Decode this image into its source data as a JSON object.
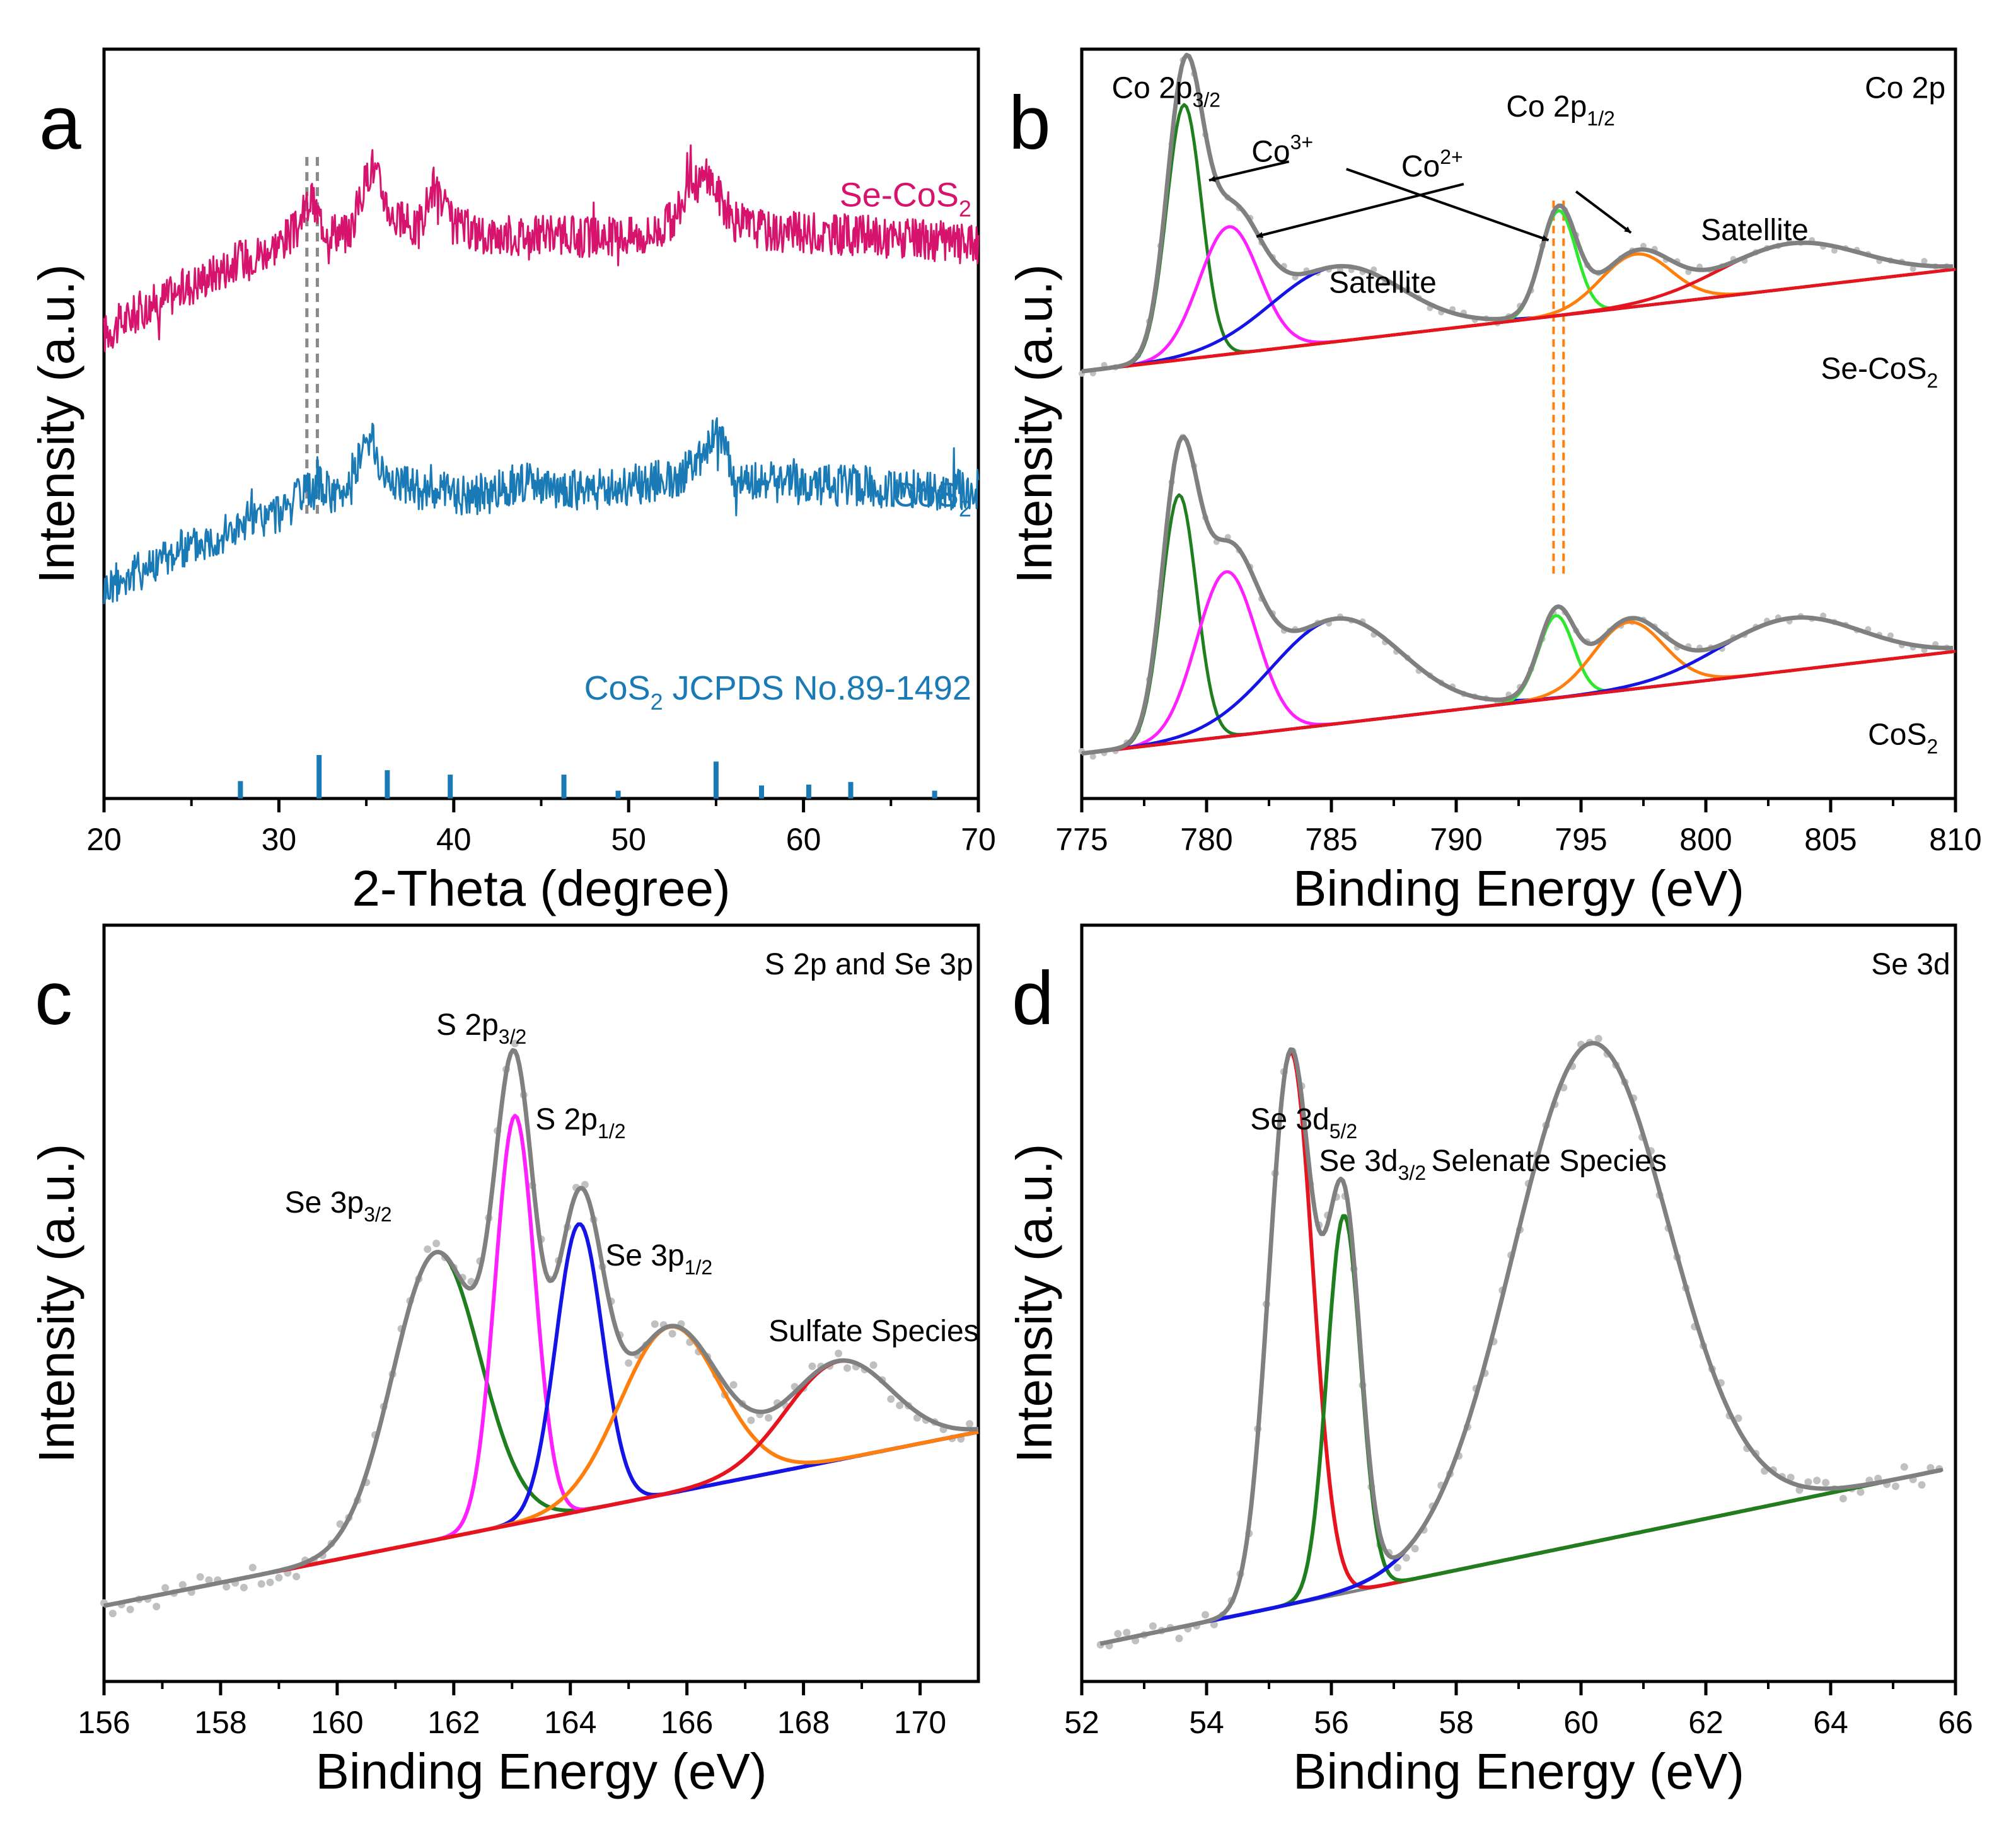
{
  "chart_data": [
    {
      "panel": "a",
      "type": "line",
      "xlabel": "2-Theta (degree)",
      "ylabel": "Intensity (a.u.)",
      "xlim": [
        20,
        70
      ],
      "xticks": [
        20,
        30,
        40,
        50,
        60,
        70
      ],
      "colors": {
        "se_cos2": "#d6136d",
        "cos2": "#1a7ab5",
        "ref": "#1a7ab5",
        "guide": "#8a8a8a"
      },
      "series": [
        {
          "name": "Se-CoS2",
          "label": "Se-CoS",
          "sub": "2",
          "offset": 0.92,
          "amp": 0.3,
          "points": [
            [
              20,
              0.0
            ],
            [
              22,
              0.1
            ],
            [
              24,
              0.18
            ],
            [
              26,
              0.26
            ],
            [
              28,
              0.34
            ],
            [
              29.5,
              0.38
            ],
            [
              31,
              0.46
            ],
            [
              31.8,
              0.6
            ],
            [
              32.6,
              0.48
            ],
            [
              34,
              0.44
            ],
            [
              35.3,
              0.76
            ],
            [
              36.5,
              0.52
            ],
            [
              38,
              0.46
            ],
            [
              38.8,
              0.66
            ],
            [
              40,
              0.48
            ],
            [
              42,
              0.44
            ],
            [
              45,
              0.44
            ],
            [
              48,
              0.43
            ],
            [
              51,
              0.44
            ],
            [
              52.5,
              0.5
            ],
            [
              53.6,
              0.66
            ],
            [
              54.6,
              0.7
            ],
            [
              56,
              0.5
            ],
            [
              58,
              0.46
            ],
            [
              60,
              0.45
            ],
            [
              63,
              0.44
            ],
            [
              66,
              0.42
            ],
            [
              70,
              0.4
            ]
          ]
        },
        {
          "name": "CoS2",
          "label": "CoS",
          "sub": "2",
          "offset": 0.58,
          "amp": 0.3,
          "points": [
            [
              20,
              0.0
            ],
            [
              22,
              0.08
            ],
            [
              24,
              0.16
            ],
            [
              26,
              0.22
            ],
            [
              28,
              0.28
            ],
            [
              30,
              0.34
            ],
            [
              32.3,
              0.46
            ],
            [
              33.5,
              0.4
            ],
            [
              35.2,
              0.68
            ],
            [
              36,
              0.5
            ],
            [
              38,
              0.44
            ],
            [
              40,
              0.42
            ],
            [
              42,
              0.42
            ],
            [
              44,
              0.48
            ],
            [
              45,
              0.44
            ],
            [
              48,
              0.44
            ],
            [
              50,
              0.46
            ],
            [
              53,
              0.5
            ],
            [
              54.5,
              0.62
            ],
            [
              55,
              0.72
            ],
            [
              56,
              0.5
            ],
            [
              58,
              0.48
            ],
            [
              60,
              0.46
            ],
            [
              63,
              0.46
            ],
            [
              66,
              0.44
            ],
            [
              70,
              0.44
            ]
          ]
        }
      ],
      "reference": {
        "label": "CoS",
        "sub": "2",
        "label_rest": " JCPDS No.89-1492",
        "positions": [
          27.8,
          32.3,
          36.2,
          39.8,
          46.3,
          49.4,
          55.0,
          57.6,
          60.3,
          62.7,
          67.5
        ],
        "heights": [
          0.4,
          1.0,
          0.65,
          0.55,
          0.55,
          0.18,
          0.85,
          0.3,
          0.32,
          0.38,
          0.18
        ]
      },
      "guides": [
        31.6,
        32.2
      ]
    },
    {
      "panel": "b",
      "type": "line",
      "xlabel": "Binding Energy (eV)",
      "ylabel": "Intensity (a.u.)",
      "xlim": [
        775,
        810
      ],
      "xticks": [
        775,
        780,
        785,
        790,
        795,
        800,
        805,
        810
      ],
      "inset_title": "Co 2p",
      "offsets": [
        0.57,
        0.06
      ],
      "spectra_labels": [
        {
          "label": "Se-CoS",
          "sub": "2"
        },
        {
          "label": "CoS",
          "sub": "2"
        }
      ],
      "baseline": {
        "start": 0.0,
        "end": 0.22
      },
      "peaks_top": [
        {
          "name": "Co3+ 2p3/2",
          "center": 779.1,
          "height": 0.34,
          "width": 0.7,
          "color": "#1f7f1f"
        },
        {
          "name": "Co2+ 2p3/2",
          "center": 780.9,
          "height": 0.17,
          "width": 1.2,
          "color": "#ff1fff"
        },
        {
          "name": "Satellite",
          "center": 785.2,
          "height": 0.1,
          "width": 2.6,
          "color": "#1414e6"
        },
        {
          "name": "Co3+ 2p1/2",
          "center": 794.1,
          "height": 0.14,
          "width": 0.7,
          "color": "#2ee82e"
        },
        {
          "name": "Co2+ 2p1/2",
          "center": 797.2,
          "height": 0.07,
          "width": 1.4,
          "color": "#ff7f0e"
        },
        {
          "name": "Satellite",
          "center": 803.4,
          "height": 0.06,
          "width": 2.8,
          "color": "#e6141e"
        }
      ],
      "peaks_bottom": [
        {
          "name": "Co3+ 2p3/2",
          "center": 778.9,
          "height": 0.33,
          "width": 0.7,
          "color": "#1f7f1f"
        },
        {
          "name": "Co2+ 2p3/2",
          "center": 780.8,
          "height": 0.22,
          "width": 1.2,
          "color": "#ff1fff"
        },
        {
          "name": "Satellite",
          "center": 785.2,
          "height": 0.14,
          "width": 2.6,
          "color": "#1414e6"
        },
        {
          "name": "Co3+ 2p1/2",
          "center": 794.0,
          "height": 0.11,
          "width": 0.7,
          "color": "#2ee82e"
        },
        {
          "name": "Co2+ 2p1/2",
          "center": 796.9,
          "height": 0.09,
          "width": 1.4,
          "color": "#ff7f0e"
        },
        {
          "name": "Satellite",
          "center": 803.4,
          "height": 0.07,
          "width": 2.8,
          "color": "#1414e6"
        }
      ],
      "guides": [
        793.9,
        794.3
      ],
      "annotations": {
        "co2p32": {
          "label": "Co 2p",
          "sub": "3/2"
        },
        "co2p12": {
          "label": "Co 2p",
          "sub": "1/2"
        },
        "co3": {
          "label": "Co",
          "sup": "3+"
        },
        "co2": {
          "label": "Co",
          "sup": "2+"
        },
        "satellite": "Satellite"
      }
    },
    {
      "panel": "c",
      "type": "line",
      "xlabel": "Binding Energy (eV)",
      "ylabel": "Intensity (a.u.)",
      "xlim": [
        156,
        171
      ],
      "xticks": [
        156,
        158,
        160,
        162,
        164,
        166,
        168,
        170
      ],
      "inset_title": "S 2p and Se 3p",
      "baseline": {
        "start": 0.1,
        "end": 0.33
      },
      "peaks": [
        {
          "name": "Se 3p3/2",
          "center": 161.7,
          "height": 0.38,
          "width": 0.75,
          "color": "#1f7f1f"
        },
        {
          "name": "S 2p3/2",
          "center": 163.05,
          "height": 0.54,
          "width": 0.34,
          "color": "#ff1fff"
        },
        {
          "name": "S 2p1/2",
          "center": 164.15,
          "height": 0.38,
          "width": 0.4,
          "color": "#1414e6"
        },
        {
          "name": "Se 3p1/2",
          "center": 165.7,
          "height": 0.22,
          "width": 0.85,
          "color": "#ff7f0e"
        },
        {
          "name": "Sulfate Species",
          "center": 168.6,
          "height": 0.13,
          "width": 0.9,
          "color": "#e6141e"
        }
      ],
      "annotations": [
        {
          "label": "Se 3p",
          "sub": "3/2"
        },
        {
          "label": "S 2p",
          "sub": "3/2"
        },
        {
          "label": "S 2p",
          "sub": "1/2"
        },
        {
          "label": "Se 3p",
          "sub": "1/2"
        },
        {
          "label": "Sulfate Species",
          "sub": ""
        }
      ]
    },
    {
      "panel": "d",
      "type": "line",
      "xlabel": "Binding Energy (eV)",
      "ylabel": "Intensity (a.u.)",
      "xlim": [
        52,
        66
      ],
      "xticks": [
        52,
        54,
        56,
        58,
        60,
        62,
        64,
        66
      ],
      "inset_title": "Se 3d",
      "baseline": {
        "start": 0.05,
        "end": 0.28,
        "x0": 52.3,
        "x1": 65.8
      },
      "peaks": [
        {
          "name": "Se 3d5/2",
          "center": 55.35,
          "height": 0.73,
          "width": 0.35,
          "color": "#e6141e"
        },
        {
          "name": "Se 3d3/2",
          "center": 56.2,
          "height": 0.5,
          "width": 0.27,
          "color": "#1f7f1f"
        },
        {
          "name": "Selenate Species",
          "center": 60.15,
          "height": 0.66,
          "width": 1.25,
          "color": "#1414e6"
        }
      ],
      "annotations": [
        {
          "label": "Se 3d",
          "sub": "5/2"
        },
        {
          "label": "Se 3d",
          "sub": "3/2"
        },
        {
          "label": "Selenate Species",
          "sub": ""
        }
      ]
    }
  ],
  "panel_letters": [
    "a",
    "b",
    "c",
    "d"
  ]
}
